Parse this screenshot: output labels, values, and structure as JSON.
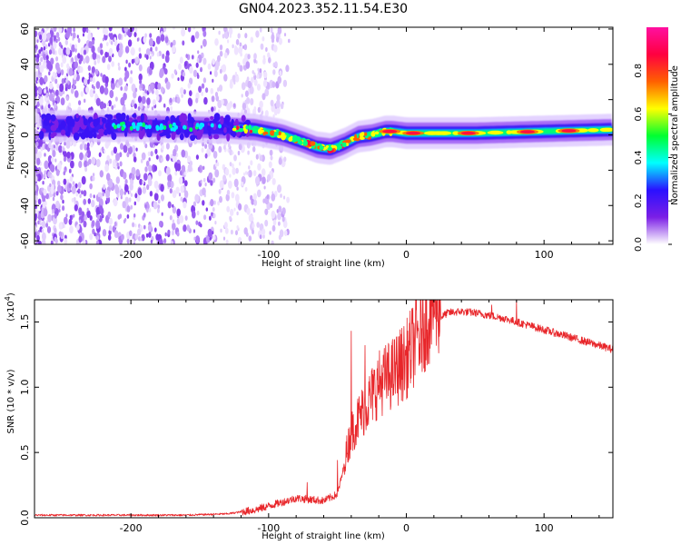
{
  "title": "GN04.2023.352.11.54.E30",
  "colorbar": {
    "label": "Normalized spectral amplitude",
    "ticks": [
      "0.0",
      "0.2",
      "0.4",
      "0.6",
      "0.8"
    ],
    "tick_values": [
      0.0,
      0.2,
      0.4,
      0.6,
      0.8
    ],
    "range": [
      0,
      1
    ],
    "colormap": [
      "#ffffff",
      "#7b1fe6",
      "#2a10ff",
      "#00ffff",
      "#00ff30",
      "#ffff00",
      "#ff6000",
      "#ff0040",
      "#ff10a0"
    ]
  },
  "chart_data": [
    {
      "type": "heatmap",
      "xlabel": "Height of straight line (km)",
      "ylabel": "Frequency (Hz)",
      "xlim": [
        -270,
        150
      ],
      "ylim": [
        -62,
        61
      ],
      "xticks": [
        -200,
        -100,
        0,
        100
      ],
      "xtick_labels": [
        "-200",
        "-100",
        "0",
        "100"
      ],
      "yticks": [
        60,
        40,
        20,
        0,
        -20,
        -40,
        -60
      ],
      "ytick_labels": [
        "60",
        "40",
        "20",
        "0",
        "-20",
        "-40",
        "-60"
      ],
      "ridge": {
        "x": [
          -270,
          -200,
          -130,
          -110,
          -90,
          -75,
          -65,
          -55,
          -45,
          -35,
          -25,
          -15,
          -10,
          0,
          50,
          100,
          150
        ],
        "freq": [
          5,
          5,
          4,
          3,
          0,
          -4,
          -7,
          -8,
          -5,
          -1,
          0,
          2,
          2,
          1,
          1,
          2,
          3
        ]
      },
      "noise_extent_x": [
        -270,
        -100
      ]
    },
    {
      "type": "line",
      "xlabel": "Height of straight line (km)",
      "ylabel": "SNR (10 * v/v)",
      "yunit": "(x10",
      "yunit_exponent": "4",
      "yunit_close": ")",
      "xlim": [
        -270,
        150
      ],
      "ylim": [
        0,
        1.67
      ],
      "xticks": [
        -200,
        -100,
        0,
        100
      ],
      "xtick_labels": [
        "-200",
        "-100",
        "0",
        "100"
      ],
      "yticks": [
        0.0,
        0.5,
        1.0,
        1.5
      ],
      "ytick_labels": [
        "0.0",
        "0.5",
        "1.0",
        "1.5"
      ],
      "series": [
        {
          "color": "#e8262a",
          "x": [
            -270,
            -240,
            -200,
            -160,
            -130,
            -110,
            -100,
            -90,
            -80,
            -70,
            -60,
            -50,
            -45,
            -40,
            -35,
            -30,
            -20,
            -10,
            0,
            10,
            20,
            30,
            40,
            50,
            60,
            70,
            80,
            90,
            100,
            110,
            120,
            130,
            140,
            150
          ],
          "y": [
            0.02,
            0.02,
            0.02,
            0.02,
            0.03,
            0.06,
            0.09,
            0.12,
            0.15,
            0.14,
            0.13,
            0.18,
            0.4,
            0.6,
            0.7,
            0.78,
            0.95,
            1.02,
            1.12,
            1.32,
            1.5,
            1.57,
            1.58,
            1.57,
            1.55,
            1.53,
            1.5,
            1.47,
            1.44,
            1.41,
            1.38,
            1.35,
            1.32,
            1.29
          ]
        }
      ],
      "spikes": [
        {
          "x": -72,
          "y": 0.27
        },
        {
          "x": -50,
          "y": 0.44
        },
        {
          "x": -40,
          "y": 1.43
        },
        {
          "x": -30,
          "y": 1.32
        },
        {
          "x": -25,
          "y": 1.13
        },
        {
          "x": -18,
          "y": 1.17
        },
        {
          "x": -7,
          "y": 1.18
        },
        {
          "x": 2,
          "y": 1.28
        },
        {
          "x": 10,
          "y": 1.18
        },
        {
          "x": 62,
          "y": 1.63
        },
        {
          "x": 80,
          "y": 1.67
        },
        {
          "x": 107,
          "y": 1.44
        }
      ]
    }
  ]
}
